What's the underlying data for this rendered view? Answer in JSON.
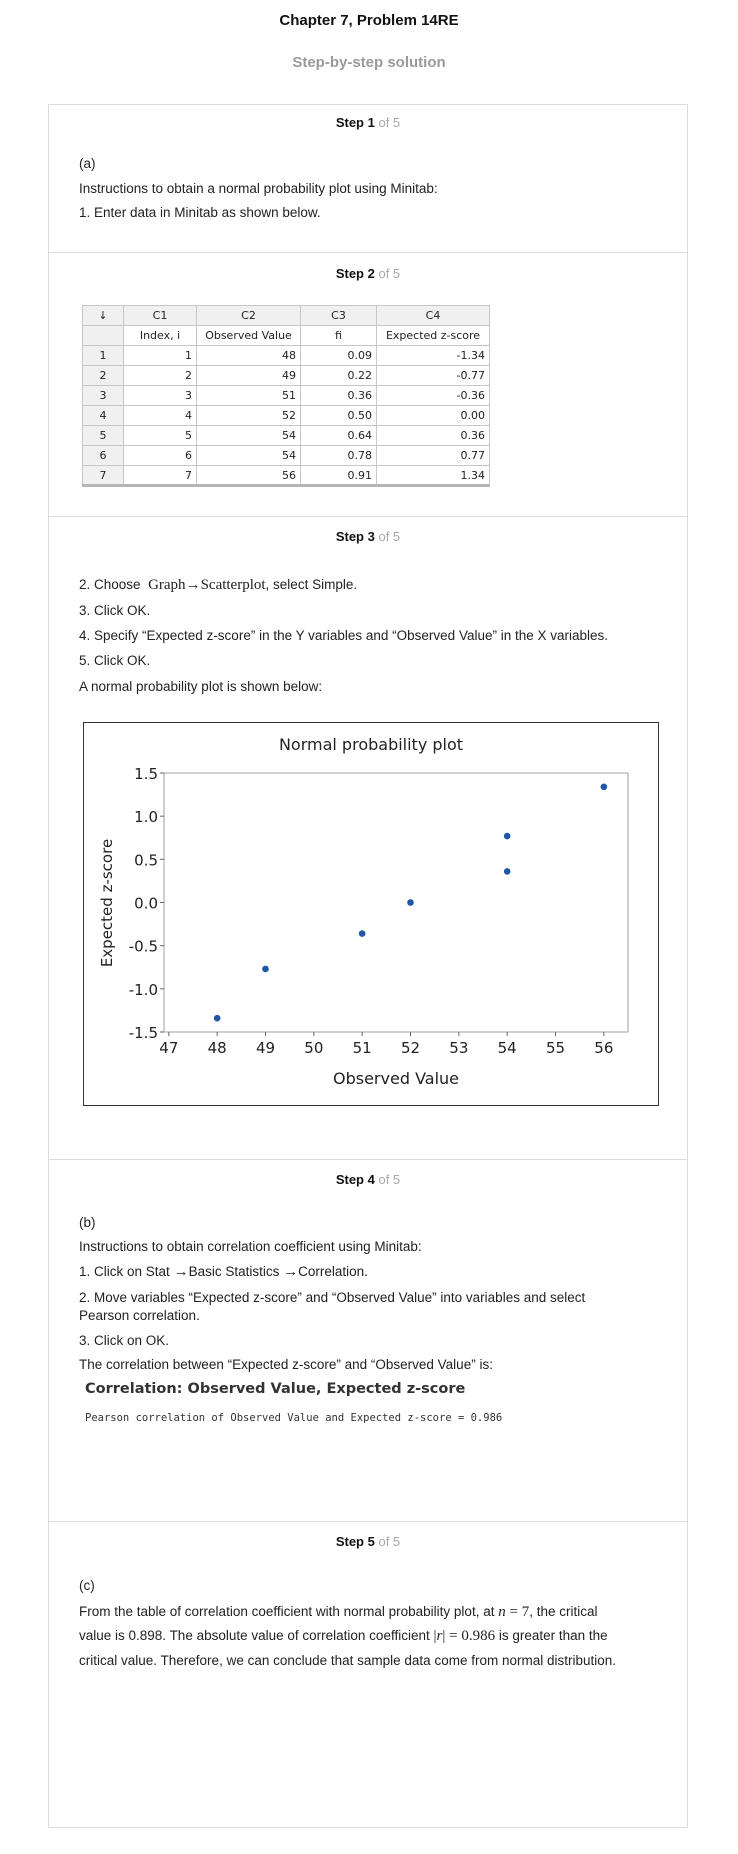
{
  "header": {
    "title": "Chapter 7, Problem 14RE",
    "subtitle": "Step-by-step solution"
  },
  "step_of": "of 5",
  "steps": [
    {
      "label": "Step 1",
      "part": "(a)",
      "lines": [
        "Instructions to obtain a normal probability plot using Minitab:",
        "1. Enter data in Minitab as shown below."
      ]
    },
    {
      "label": "Step 2",
      "worksheet": {
        "corner": "↓",
        "columns": [
          "C1",
          "C2",
          "C3",
          "C4"
        ],
        "names": [
          "Index, i",
          "Observed Value",
          "fi",
          "Expected z-score"
        ],
        "rows": [
          {
            "row": "1",
            "cells": [
              "1",
              "48",
              "0.09",
              "-1.34"
            ]
          },
          {
            "row": "2",
            "cells": [
              "2",
              "49",
              "0.22",
              "-0.77"
            ]
          },
          {
            "row": "3",
            "cells": [
              "3",
              "51",
              "0.36",
              "-0.36"
            ]
          },
          {
            "row": "4",
            "cells": [
              "4",
              "52",
              "0.50",
              "0.00"
            ]
          },
          {
            "row": "5",
            "cells": [
              "5",
              "54",
              "0.64",
              "0.36"
            ]
          },
          {
            "row": "6",
            "cells": [
              "6",
              "54",
              "0.78",
              "0.77"
            ]
          },
          {
            "row": "7",
            "cells": [
              "7",
              "56",
              "0.91",
              "1.34"
            ]
          }
        ]
      }
    },
    {
      "label": "Step 3",
      "choose_prefix": "2. Choose",
      "choose_menu_a": "Graph",
      "choose_arrow": "→",
      "choose_menu_b": "Scatterplot",
      "choose_suffix": ", select Simple.",
      "lines": [
        "3. Click OK.",
        "4. Specify “Expected z-score” in the Y variables and “Observed Value” in the X variables.",
        "5. Click OK.",
        "A normal probability plot is shown below:"
      ]
    },
    {
      "label": "Step 4",
      "part": "(b)",
      "intro": "Instructions to obtain correlation coefficient using Minitab:",
      "line1_prefix": "1. Click on Stat",
      "line1_arrow1": "→",
      "line1_mid": "Basic Statistics",
      "line1_arrow2": "→",
      "line1_end": "Correlation.",
      "line2a": "2. Move variables “Expected z-score” and “Observed Value” into variables and select",
      "line2b": "Pearson correlation.",
      "line3": "3. Click on OK.",
      "result_intro": "The correlation between “Expected z-score” and “Observed Value” is:",
      "output_title": "Correlation: Observed Value, Expected z-score",
      "output_line": "Pearson correlation of Observed Value and Expected z-score = 0.986"
    },
    {
      "label": "Step 5",
      "part": "(c)",
      "text1a": "From the table of correlation coefficient with normal probability plot, at",
      "n_expr_var": "n",
      "n_expr_rest": " = 7",
      "text1b": ", the critical",
      "text2a": "value is 0.898. The absolute value of correlation coefficient",
      "r_expr_var": "r",
      "r_expr_rest": " = 0.986",
      "text2b": "is greater than the",
      "text3": "critical value. Therefore, we can conclude that sample data come from normal distribution."
    }
  ],
  "chart_data": {
    "type": "scatter",
    "title": "Normal probability plot",
    "xlabel": "Observed Value",
    "ylabel": "Expected z-score",
    "xlim": [
      46.9,
      56.5
    ],
    "ylim": [
      -1.5,
      1.5
    ],
    "xticks": [
      47,
      48,
      49,
      50,
      51,
      52,
      53,
      54,
      55,
      56
    ],
    "yticks": [
      1.5,
      1.0,
      0.5,
      0.0,
      -0.5,
      -1.0,
      -1.5
    ],
    "ytick_labels": [
      "1.5",
      "1.0",
      "0.5",
      "0.0",
      "-0.5",
      "-1.0",
      "-1.5"
    ],
    "x": [
      48,
      49,
      51,
      52,
      54,
      54,
      56
    ],
    "y": [
      -1.34,
      -0.77,
      -0.36,
      0.0,
      0.36,
      0.77,
      1.34
    ],
    "point_color": "#1f56a8",
    "grid": false
  }
}
